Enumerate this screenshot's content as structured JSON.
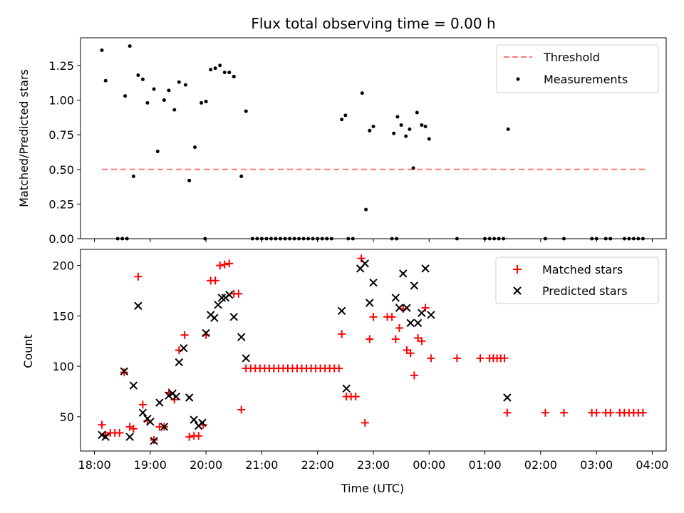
{
  "chart_data": [
    {
      "type": "scatter",
      "title": "Flux total observing time = 0.00 h",
      "xlabel": "",
      "ylabel": "Matched/Predicted stars",
      "xlim": [
        "17:45",
        "04:15"
      ],
      "ylim": [
        0,
        1.45
      ],
      "yticks": [
        "0.00",
        "0.25",
        "0.50",
        "0.75",
        "1.00",
        "1.25"
      ],
      "legend_position": "top-right",
      "colors": {
        "threshold": "#ff7777",
        "measurements": "#000000"
      },
      "series": [
        {
          "name": "Threshold",
          "style": "dashed-line",
          "points": [
            {
              "x": "18:08",
              "y": 0.5
            },
            {
              "x": "03:55",
              "y": 0.5
            }
          ]
        },
        {
          "name": "Measurements",
          "style": "dot",
          "points": [
            {
              "x": "18:08",
              "y": 1.36
            },
            {
              "x": "18:12",
              "y": 1.14
            },
            {
              "x": "18:33",
              "y": 1.03
            },
            {
              "x": "18:38",
              "y": 1.39
            },
            {
              "x": "18:42",
              "y": 0.45
            },
            {
              "x": "18:47",
              "y": 1.18
            },
            {
              "x": "18:52",
              "y": 1.15
            },
            {
              "x": "18:57",
              "y": 0.98
            },
            {
              "x": "19:04",
              "y": 1.08
            },
            {
              "x": "19:08",
              "y": 0.63
            },
            {
              "x": "19:15",
              "y": 1.0
            },
            {
              "x": "19:20",
              "y": 1.07
            },
            {
              "x": "19:26",
              "y": 0.93
            },
            {
              "x": "19:31",
              "y": 1.13
            },
            {
              "x": "19:38",
              "y": 1.11
            },
            {
              "x": "19:42",
              "y": 0.42
            },
            {
              "x": "19:48",
              "y": 0.66
            },
            {
              "x": "19:55",
              "y": 0.98
            },
            {
              "x": "20:00",
              "y": 0.99
            },
            {
              "x": "20:05",
              "y": 1.22
            },
            {
              "x": "20:10",
              "y": 1.23
            },
            {
              "x": "20:15",
              "y": 1.25
            },
            {
              "x": "20:20",
              "y": 1.2
            },
            {
              "x": "20:25",
              "y": 1.2
            },
            {
              "x": "20:30",
              "y": 1.17
            },
            {
              "x": "20:38",
              "y": 0.45
            },
            {
              "x": "20:43",
              "y": 0.92
            },
            {
              "x": "22:26",
              "y": 0.86
            },
            {
              "x": "22:30",
              "y": 0.89
            },
            {
              "x": "22:48",
              "y": 1.05
            },
            {
              "x": "22:52",
              "y": 0.21
            },
            {
              "x": "22:56",
              "y": 0.78
            },
            {
              "x": "23:00",
              "y": 0.81
            },
            {
              "x": "23:22",
              "y": 0.76
            },
            {
              "x": "23:26",
              "y": 0.88
            },
            {
              "x": "23:30",
              "y": 0.82
            },
            {
              "x": "23:35",
              "y": 0.74
            },
            {
              "x": "23:39",
              "y": 0.79
            },
            {
              "x": "23:43",
              "y": 0.51
            },
            {
              "x": "23:47",
              "y": 0.91
            },
            {
              "x": "23:52",
              "y": 0.82
            },
            {
              "x": "23:56",
              "y": 0.81
            },
            {
              "x": "00:00",
              "y": 0.72
            },
            {
              "x": "01:25",
              "y": 0.79
            },
            {
              "x": "18:25",
              "y": 0.0
            },
            {
              "x": "18:30",
              "y": 0.0
            },
            {
              "x": "18:35",
              "y": 0.0
            },
            {
              "x": "19:59",
              "y": 0.0
            },
            {
              "x": "20:50",
              "y": 0.0
            },
            {
              "x": "20:55",
              "y": 0.0
            },
            {
              "x": "21:00",
              "y": 0.0
            },
            {
              "x": "21:05",
              "y": 0.0
            },
            {
              "x": "21:10",
              "y": 0.0
            },
            {
              "x": "21:15",
              "y": 0.0
            },
            {
              "x": "21:20",
              "y": 0.0
            },
            {
              "x": "21:25",
              "y": 0.0
            },
            {
              "x": "21:30",
              "y": 0.0
            },
            {
              "x": "21:35",
              "y": 0.0
            },
            {
              "x": "21:40",
              "y": 0.0
            },
            {
              "x": "21:45",
              "y": 0.0
            },
            {
              "x": "21:50",
              "y": 0.0
            },
            {
              "x": "21:55",
              "y": 0.0
            },
            {
              "x": "22:00",
              "y": 0.0
            },
            {
              "x": "22:05",
              "y": 0.0
            },
            {
              "x": "22:10",
              "y": 0.0
            },
            {
              "x": "22:15",
              "y": 0.0
            },
            {
              "x": "22:33",
              "y": 0.0
            },
            {
              "x": "22:38",
              "y": 0.0
            },
            {
              "x": "23:20",
              "y": 0.0
            },
            {
              "x": "23:25",
              "y": 0.0
            },
            {
              "x": "00:30",
              "y": 0.0
            },
            {
              "x": "01:00",
              "y": 0.0
            },
            {
              "x": "01:05",
              "y": 0.0
            },
            {
              "x": "01:10",
              "y": 0.0
            },
            {
              "x": "01:15",
              "y": 0.0
            },
            {
              "x": "01:20",
              "y": 0.0
            },
            {
              "x": "02:05",
              "y": 0.0
            },
            {
              "x": "02:25",
              "y": 0.0
            },
            {
              "x": "02:55",
              "y": 0.0
            },
            {
              "x": "03:00",
              "y": 0.0
            },
            {
              "x": "03:10",
              "y": 0.0
            },
            {
              "x": "03:15",
              "y": 0.0
            },
            {
              "x": "03:30",
              "y": 0.0
            },
            {
              "x": "03:35",
              "y": 0.0
            },
            {
              "x": "03:40",
              "y": 0.0
            },
            {
              "x": "03:45",
              "y": 0.0
            },
            {
              "x": "03:50",
              "y": 0.0
            }
          ]
        }
      ]
    },
    {
      "type": "scatter",
      "title": "",
      "xlabel": "Time (UTC)",
      "ylabel": "Count",
      "xlim": [
        "17:45",
        "04:15"
      ],
      "ylim": [
        16,
        216
      ],
      "yticks": [
        "50",
        "100",
        "150",
        "200"
      ],
      "xticks": [
        "18:00",
        "19:00",
        "20:00",
        "21:00",
        "22:00",
        "23:00",
        "00:00",
        "01:00",
        "02:00",
        "03:00",
        "04:00"
      ],
      "legend_position": "top-right",
      "colors": {
        "matched": "#ff0000",
        "predicted": "#000000"
      },
      "series": [
        {
          "name": "Matched stars",
          "marker": "plus",
          "points": [
            {
              "x": "18:08",
              "y": 42
            },
            {
              "x": "18:12",
              "y": 32
            },
            {
              "x": "18:17",
              "y": 34
            },
            {
              "x": "18:22",
              "y": 34
            },
            {
              "x": "18:27",
              "y": 34
            },
            {
              "x": "18:32",
              "y": 94
            },
            {
              "x": "18:38",
              "y": 40
            },
            {
              "x": "18:42",
              "y": 38
            },
            {
              "x": "18:47",
              "y": 189
            },
            {
              "x": "18:52",
              "y": 62
            },
            {
              "x": "18:57",
              "y": 46
            },
            {
              "x": "19:04",
              "y": 27
            },
            {
              "x": "19:10",
              "y": 40
            },
            {
              "x": "19:15",
              "y": 40
            },
            {
              "x": "19:20",
              "y": 74
            },
            {
              "x": "19:26",
              "y": 67
            },
            {
              "x": "19:31",
              "y": 116
            },
            {
              "x": "19:37",
              "y": 131
            },
            {
              "x": "19:42",
              "y": 30
            },
            {
              "x": "19:47",
              "y": 31
            },
            {
              "x": "19:52",
              "y": 31
            },
            {
              "x": "19:57",
              "y": 42
            },
            {
              "x": "20:00",
              "y": 131
            },
            {
              "x": "20:05",
              "y": 185
            },
            {
              "x": "20:10",
              "y": 185
            },
            {
              "x": "20:15",
              "y": 200
            },
            {
              "x": "20:20",
              "y": 201
            },
            {
              "x": "20:25",
              "y": 202
            },
            {
              "x": "20:30",
              "y": 172
            },
            {
              "x": "20:35",
              "y": 172
            },
            {
              "x": "20:38",
              "y": 57
            },
            {
              "x": "20:43",
              "y": 98
            },
            {
              "x": "20:48",
              "y": 98
            },
            {
              "x": "20:53",
              "y": 98
            },
            {
              "x": "20:58",
              "y": 98
            },
            {
              "x": "21:03",
              "y": 98
            },
            {
              "x": "21:08",
              "y": 98
            },
            {
              "x": "21:13",
              "y": 98
            },
            {
              "x": "21:18",
              "y": 98
            },
            {
              "x": "21:23",
              "y": 98
            },
            {
              "x": "21:28",
              "y": 98
            },
            {
              "x": "21:33",
              "y": 98
            },
            {
              "x": "21:38",
              "y": 98
            },
            {
              "x": "21:43",
              "y": 98
            },
            {
              "x": "21:48",
              "y": 98
            },
            {
              "x": "21:53",
              "y": 98
            },
            {
              "x": "21:58",
              "y": 98
            },
            {
              "x": "22:03",
              "y": 98
            },
            {
              "x": "22:08",
              "y": 98
            },
            {
              "x": "22:13",
              "y": 98
            },
            {
              "x": "22:18",
              "y": 98
            },
            {
              "x": "22:23",
              "y": 98
            },
            {
              "x": "22:26",
              "y": 132
            },
            {
              "x": "22:31",
              "y": 70
            },
            {
              "x": "22:36",
              "y": 70
            },
            {
              "x": "22:41",
              "y": 70
            },
            {
              "x": "22:47",
              "y": 207
            },
            {
              "x": "22:51",
              "y": 44
            },
            {
              "x": "22:56",
              "y": 127
            },
            {
              "x": "23:00",
              "y": 149
            },
            {
              "x": "23:15",
              "y": 149
            },
            {
              "x": "23:20",
              "y": 149
            },
            {
              "x": "23:24",
              "y": 127
            },
            {
              "x": "23:28",
              "y": 138
            },
            {
              "x": "23:32",
              "y": 157
            },
            {
              "x": "23:36",
              "y": 116
            },
            {
              "x": "23:40",
              "y": 113
            },
            {
              "x": "23:44",
              "y": 91
            },
            {
              "x": "23:48",
              "y": 128
            },
            {
              "x": "23:52",
              "y": 125
            },
            {
              "x": "23:56",
              "y": 158
            },
            {
              "x": "00:02",
              "y": 108
            },
            {
              "x": "00:30",
              "y": 108
            },
            {
              "x": "00:55",
              "y": 108
            },
            {
              "x": "01:05",
              "y": 108
            },
            {
              "x": "01:09",
              "y": 108
            },
            {
              "x": "01:13",
              "y": 108
            },
            {
              "x": "01:17",
              "y": 108
            },
            {
              "x": "01:21",
              "y": 108
            },
            {
              "x": "01:24",
              "y": 54
            },
            {
              "x": "02:05",
              "y": 54
            },
            {
              "x": "02:25",
              "y": 54
            },
            {
              "x": "02:55",
              "y": 54
            },
            {
              "x": "03:00",
              "y": 54
            },
            {
              "x": "03:10",
              "y": 54
            },
            {
              "x": "03:15",
              "y": 54
            },
            {
              "x": "03:25",
              "y": 54
            },
            {
              "x": "03:30",
              "y": 54
            },
            {
              "x": "03:35",
              "y": 54
            },
            {
              "x": "03:40",
              "y": 54
            },
            {
              "x": "03:45",
              "y": 54
            },
            {
              "x": "03:50",
              "y": 54
            }
          ]
        },
        {
          "name": "Predicted stars",
          "marker": "x",
          "points": [
            {
              "x": "18:08",
              "y": 32
            },
            {
              "x": "18:12",
              "y": 30
            },
            {
              "x": "18:32",
              "y": 95
            },
            {
              "x": "18:38",
              "y": 30
            },
            {
              "x": "18:42",
              "y": 81
            },
            {
              "x": "18:47",
              "y": 160
            },
            {
              "x": "18:52",
              "y": 54
            },
            {
              "x": "18:57",
              "y": 48
            },
            {
              "x": "19:00",
              "y": 45
            },
            {
              "x": "19:04",
              "y": 26
            },
            {
              "x": "19:10",
              "y": 64
            },
            {
              "x": "19:15",
              "y": 40
            },
            {
              "x": "19:20",
              "y": 71
            },
            {
              "x": "19:24",
              "y": 73
            },
            {
              "x": "19:28",
              "y": 70
            },
            {
              "x": "19:31",
              "y": 104
            },
            {
              "x": "19:36",
              "y": 118
            },
            {
              "x": "19:42",
              "y": 69
            },
            {
              "x": "19:47",
              "y": 47
            },
            {
              "x": "19:52",
              "y": 41
            },
            {
              "x": "19:56",
              "y": 44
            },
            {
              "x": "20:00",
              "y": 133
            },
            {
              "x": "20:05",
              "y": 151
            },
            {
              "x": "20:09",
              "y": 148
            },
            {
              "x": "20:13",
              "y": 161
            },
            {
              "x": "20:17",
              "y": 168
            },
            {
              "x": "20:21",
              "y": 168
            },
            {
              "x": "20:25",
              "y": 171
            },
            {
              "x": "20:30",
              "y": 149
            },
            {
              "x": "20:38",
              "y": 129
            },
            {
              "x": "20:43",
              "y": 108
            },
            {
              "x": "22:26",
              "y": 155
            },
            {
              "x": "22:31",
              "y": 78
            },
            {
              "x": "22:46",
              "y": 197
            },
            {
              "x": "22:51",
              "y": 202
            },
            {
              "x": "22:56",
              "y": 163
            },
            {
              "x": "23:00",
              "y": 183
            },
            {
              "x": "23:24",
              "y": 168
            },
            {
              "x": "23:28",
              "y": 158
            },
            {
              "x": "23:32",
              "y": 192
            },
            {
              "x": "23:36",
              "y": 158
            },
            {
              "x": "23:40",
              "y": 143
            },
            {
              "x": "23:44",
              "y": 180
            },
            {
              "x": "23:48",
              "y": 143
            },
            {
              "x": "23:52",
              "y": 153
            },
            {
              "x": "23:56",
              "y": 197
            },
            {
              "x": "00:02",
              "y": 151
            },
            {
              "x": "01:24",
              "y": 69
            }
          ]
        }
      ]
    }
  ]
}
